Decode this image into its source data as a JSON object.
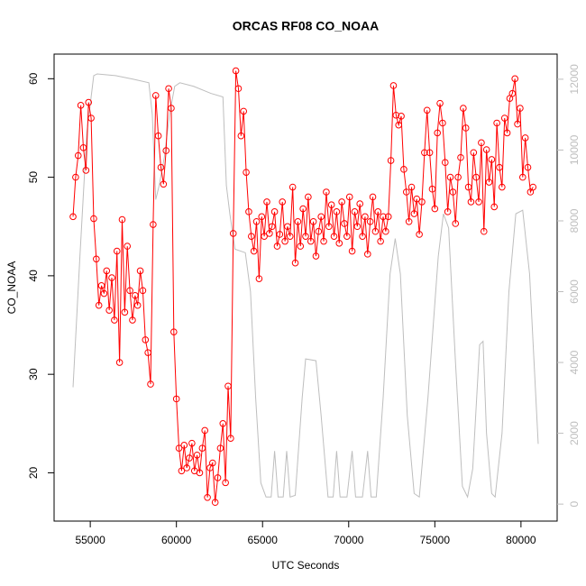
{
  "chart_data": {
    "type": "line",
    "title": "ORCAS RF08 CO_NOAA",
    "x_label": "UTC Seconds",
    "y_label": "CO_NOAA",
    "xlim": [
      52900,
      82100
    ],
    "xticks": [
      55000,
      60000,
      65000,
      70000,
      75000,
      80000
    ],
    "ylim": [
      15.1,
      62.5
    ],
    "yticks": [
      20,
      30,
      40,
      50,
      60
    ],
    "y2lim": [
      -480,
      12710
    ],
    "y2ticks": [
      0,
      2000,
      4000,
      6000,
      8000,
      10000,
      12000
    ],
    "series": [
      {
        "color": "#bebebe",
        "axis": "y2",
        "markers": false,
        "x": [
          54000,
          54400,
          54800,
          55200,
          55400,
          56500,
          57500,
          58400,
          58600,
          58800,
          59000,
          59300,
          59600,
          59900,
          60200,
          61000,
          62000,
          62700,
          62900,
          63100,
          63400,
          64000,
          64300,
          64600,
          64900,
          65200,
          65500,
          65700,
          65900,
          66200,
          66400,
          66600,
          66900,
          67300,
          67500,
          68100,
          68400,
          68800,
          69100,
          69300,
          69500,
          69900,
          70200,
          70400,
          70800,
          71100,
          71300,
          71600,
          72000,
          72400,
          72700,
          73000,
          73400,
          73800,
          74100,
          74600,
          75200,
          75500,
          75800,
          76200,
          76600,
          76900,
          77200,
          77600,
          77800,
          78000,
          78300,
          78500,
          78900,
          79300,
          79700,
          80100,
          80500,
          81000
        ],
        "values": [
          3300,
          7000,
          10500,
          12100,
          12150,
          12100,
          12000,
          11900,
          11000,
          8600,
          9000,
          9800,
          11000,
          11800,
          11900,
          11800,
          11600,
          11500,
          9000,
          8200,
          7200,
          7100,
          6000,
          3000,
          600,
          200,
          200,
          1500,
          200,
          200,
          1500,
          200,
          250,
          3000,
          4100,
          4050,
          2500,
          200,
          200,
          1500,
          200,
          200,
          1500,
          200,
          200,
          1500,
          200,
          200,
          3000,
          6500,
          7500,
          6500,
          2500,
          300,
          200,
          3000,
          7000,
          8200,
          7800,
          4000,
          500,
          200,
          1000,
          4500,
          4600,
          2000,
          300,
          200,
          2000,
          6000,
          8200,
          8300,
          6500,
          1700
        ]
      },
      {
        "color": "#ff0000",
        "axis": "y",
        "markers": true,
        "x": [
          54000,
          54150,
          54300,
          54450,
          54600,
          54750,
          54900,
          55050,
          55200,
          55350,
          55500,
          55650,
          55800,
          55950,
          56100,
          56250,
          56400,
          56550,
          56700,
          56850,
          57000,
          57150,
          57300,
          57450,
          57600,
          57750,
          57900,
          58050,
          58200,
          58350,
          58500,
          58650,
          58800,
          58950,
          59100,
          59250,
          59400,
          59550,
          59700,
          59850,
          60000,
          60150,
          60300,
          60450,
          60600,
          60750,
          60900,
          61050,
          61200,
          61350,
          61500,
          61650,
          61800,
          61950,
          62100,
          62250,
          62400,
          62550,
          62700,
          62850,
          63000,
          63150,
          63300,
          63450,
          63600,
          63750,
          63900,
          64050,
          64200,
          64350,
          64500,
          64650,
          64800,
          64950,
          65100,
          65250,
          65400,
          65550,
          65700,
          65850,
          66000,
          66150,
          66300,
          66450,
          66600,
          66750,
          66900,
          67050,
          67200,
          67350,
          67500,
          67650,
          67800,
          67950,
          68100,
          68250,
          68400,
          68550,
          68700,
          68850,
          69000,
          69150,
          69300,
          69450,
          69600,
          69750,
          69900,
          70050,
          70200,
          70350,
          70500,
          70650,
          70800,
          70950,
          71100,
          71250,
          71400,
          71550,
          71700,
          71850,
          72000,
          72150,
          72300,
          72450,
          72600,
          72750,
          72900,
          73050,
          73200,
          73350,
          73500,
          73650,
          73800,
          73950,
          74100,
          74250,
          74400,
          74550,
          74700,
          74850,
          75000,
          75150,
          75300,
          75450,
          75600,
          75750,
          75900,
          76050,
          76200,
          76350,
          76500,
          76650,
          76800,
          76950,
          77100,
          77250,
          77400,
          77550,
          77700,
          77850,
          78000,
          78150,
          78300,
          78450,
          78600,
          78750,
          78900,
          79050,
          79200,
          79350,
          79500,
          79650,
          79800,
          79950,
          80100,
          80250,
          80400,
          80550,
          80700
        ],
        "values": [
          46,
          50,
          52.2,
          57.3,
          53,
          50.7,
          57.6,
          56,
          45.8,
          41.7,
          37,
          39,
          38.2,
          40.5,
          36.5,
          39.8,
          35.5,
          42.5,
          31.2,
          45.7,
          36.3,
          43,
          38.5,
          35.5,
          38,
          37,
          40.5,
          38.5,
          33.5,
          32.2,
          29,
          45.2,
          58.3,
          54.2,
          51,
          49.3,
          52.7,
          59,
          57,
          34.3,
          27.5,
          22.5,
          20.2,
          22.8,
          20.5,
          21.5,
          23,
          20.2,
          21.8,
          20,
          22.5,
          24.3,
          17.5,
          20.5,
          21,
          17,
          19.5,
          22.5,
          25,
          19,
          28.8,
          23.5,
          44.3,
          60.8,
          59,
          54.2,
          56.7,
          50.5,
          46.5,
          44,
          42.5,
          45.5,
          39.7,
          46,
          44,
          47.5,
          44.3,
          45,
          46.5,
          43,
          44.2,
          47.5,
          43.5,
          45,
          44,
          49,
          41.3,
          45.5,
          43,
          46.8,
          44,
          48,
          43.5,
          45.5,
          42,
          44.5,
          46,
          43.5,
          48.5,
          45,
          47.2,
          44,
          46.5,
          43.3,
          47.5,
          45.3,
          44,
          48,
          42.5,
          46.5,
          45,
          47.3,
          44,
          46,
          42.2,
          45.5,
          48,
          44.5,
          46.5,
          43.5,
          46,
          44.5,
          46,
          51.7,
          59.3,
          56.3,
          55.3,
          56.2,
          50.8,
          48.5,
          45.5,
          49,
          46.3,
          47.8,
          44.2,
          47.5,
          52.5,
          56.8,
          52.5,
          48.8,
          46.8,
          54.5,
          57.5,
          55.5,
          51.5,
          46.5,
          50,
          48.5,
          45.3,
          50,
          52,
          57,
          55,
          49,
          47.5,
          52.5,
          50,
          47.5,
          53.5,
          44.5,
          52.8,
          49.5,
          51.8,
          47,
          55.5,
          51,
          49,
          56,
          54.5,
          58,
          58.5,
          60,
          55.4,
          57,
          50,
          54,
          51,
          48.5,
          49
        ]
      }
    ]
  }
}
